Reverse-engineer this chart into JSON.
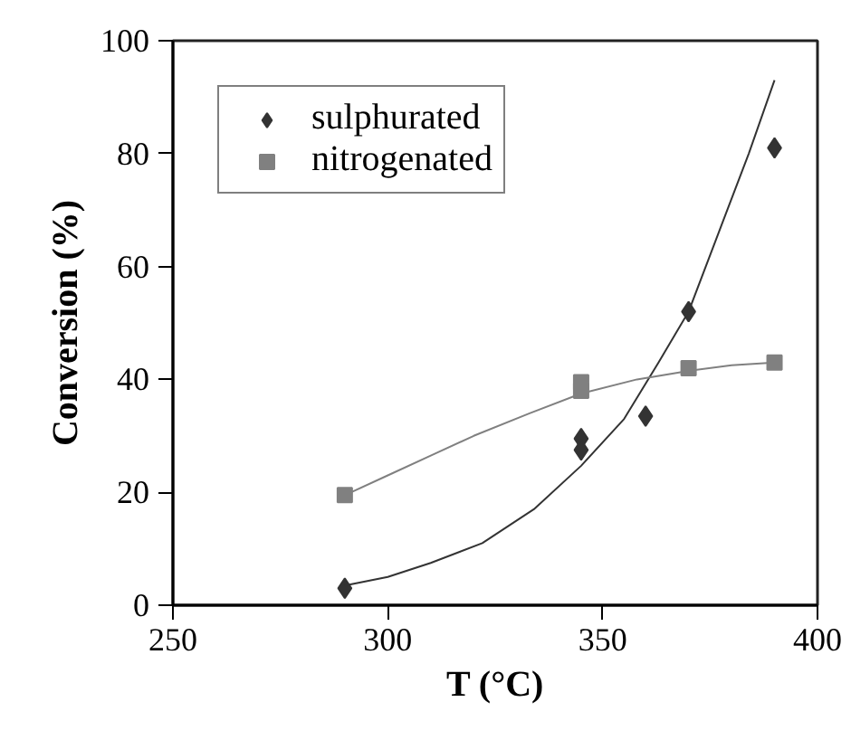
{
  "chart_data": {
    "type": "scatter",
    "xlabel": "T (°C)",
    "ylabel": "Conversion (%)",
    "xlim": [
      250,
      400
    ],
    "xticks": [
      250,
      300,
      350,
      400
    ],
    "ylim": [
      0,
      100
    ],
    "yticks": [
      0,
      20,
      40,
      60,
      80,
      100
    ],
    "grid": false,
    "legend": "top left",
    "series": [
      {
        "name": "sulphurated",
        "color": "#333333",
        "marker": "diamond",
        "x": [
          290,
          345,
          345,
          360,
          370,
          390
        ],
        "values": [
          3,
          29.5,
          27.5,
          33.5,
          52,
          81
        ]
      },
      {
        "name": "nitrogenated",
        "color": "#808080",
        "marker": "square",
        "x": [
          290,
          345,
          345,
          370,
          390
        ],
        "values": [
          19.5,
          39.5,
          38,
          42,
          43
        ]
      },
      {
        "type": "line",
        "marker": "none",
        "color": "#333333",
        "x": [
          290,
          300,
          310,
          322,
          334,
          345,
          355,
          363,
          370,
          378,
          384,
          390
        ],
        "values": [
          3.5,
          5,
          7.5,
          11,
          17,
          24.7,
          33,
          43,
          52,
          68,
          80,
          93
        ]
      },
      {
        "type": "line",
        "marker": "none",
        "color": "#808080",
        "x": [
          290,
          300,
          310,
          320,
          333,
          345,
          358,
          370,
          380,
          390
        ],
        "values": [
          19.5,
          23,
          26.5,
          30,
          34,
          37.5,
          40,
          41.5,
          42.5,
          43
        ]
      }
    ]
  }
}
